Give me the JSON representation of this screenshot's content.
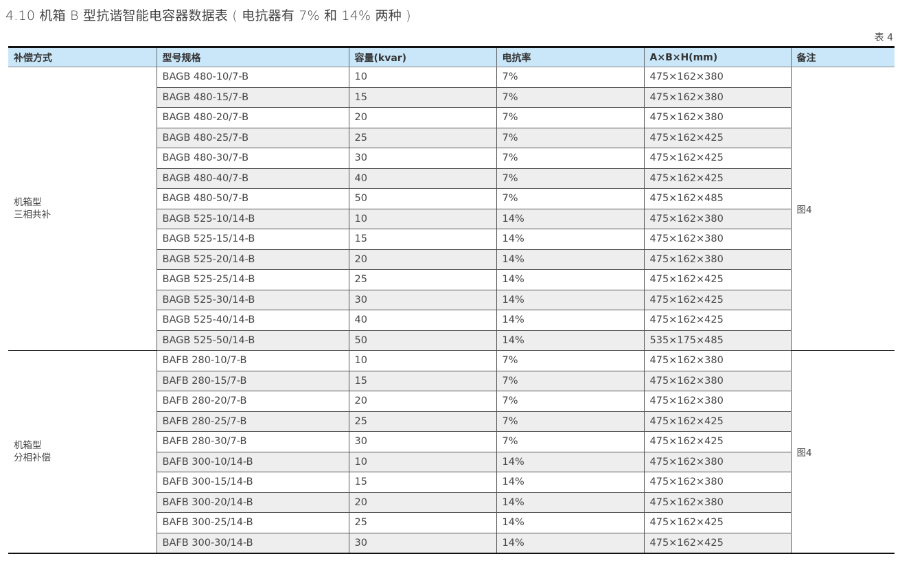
{
  "title": "4.10 机箱 B 型抗谐智能电容器数据表 ( 电抗器有 7% 和 14% 两种 )",
  "table_number": "表 4",
  "headers": [
    "补偿方式",
    "型号规格",
    "容量(kvar)",
    "电抗率",
    "A×B×H(mm)",
    "备注"
  ],
  "header_bg": "#c9e7f9",
  "groups": [
    {
      "type_lines": [
        "机箱型",
        "三相共补"
      ],
      "note": "图4",
      "rows": [
        [
          "BAGB 480-10/7-B",
          "10",
          "7%",
          "475×162×380"
        ],
        [
          "BAGB 480-15/7-B",
          "15",
          "7%",
          "475×162×380"
        ],
        [
          "BAGB 480-20/7-B",
          "20",
          "7%",
          "475×162×380"
        ],
        [
          "BAGB 480-25/7-B",
          "25",
          "7%",
          "475×162×425"
        ],
        [
          "BAGB 480-30/7-B",
          "30",
          "7%",
          "475×162×425"
        ],
        [
          "BAGB 480-40/7-B",
          "40",
          "7%",
          "475×162×425"
        ],
        [
          "BAGB 480-50/7-B",
          "50",
          "7%",
          "475×162×485"
        ],
        [
          "BAGB 525-10/14-B",
          "10",
          "14%",
          "475×162×380"
        ],
        [
          "BAGB 525-15/14-B",
          "15",
          "14%",
          "475×162×380"
        ],
        [
          "BAGB 525-20/14-B",
          "20",
          "14%",
          "475×162×380"
        ],
        [
          "BAGB 525-25/14-B",
          "25",
          "14%",
          "475×162×425"
        ],
        [
          "BAGB 525-30/14-B",
          "30",
          "14%",
          "475×162×425"
        ],
        [
          "BAGB 525-40/14-B",
          "40",
          "14%",
          "475×162×425"
        ],
        [
          "BAGB 525-50/14-B",
          "50",
          "14%",
          "535×175×485"
        ]
      ]
    },
    {
      "type_lines": [
        "机箱型",
        "分相补偿"
      ],
      "note": "图4",
      "rows": [
        [
          "BAFB 280-10/7-B",
          "10",
          "7%",
          "475×162×380"
        ],
        [
          "BAFB 280-15/7-B",
          "15",
          "7%",
          "475×162×380"
        ],
        [
          "BAFB 280-20/7-B",
          "20",
          "7%",
          "475×162×380"
        ],
        [
          "BAFB 280-25/7-B",
          "25",
          "7%",
          "475×162×425"
        ],
        [
          "BAFB 280-30/7-B",
          "30",
          "7%",
          "475×162×425"
        ],
        [
          "BAFB 300-10/14-B",
          "10",
          "14%",
          "475×162×380"
        ],
        [
          "BAFB 300-15/14-B",
          "15",
          "14%",
          "475×162×380"
        ],
        [
          "BAFB 300-20/14-B",
          "20",
          "14%",
          "475×162×380"
        ],
        [
          "BAFB 300-25/14-B",
          "25",
          "14%",
          "475×162×425"
        ],
        [
          "BAFB 300-30/14-B",
          "30",
          "14%",
          "475×162×425"
        ]
      ]
    }
  ]
}
